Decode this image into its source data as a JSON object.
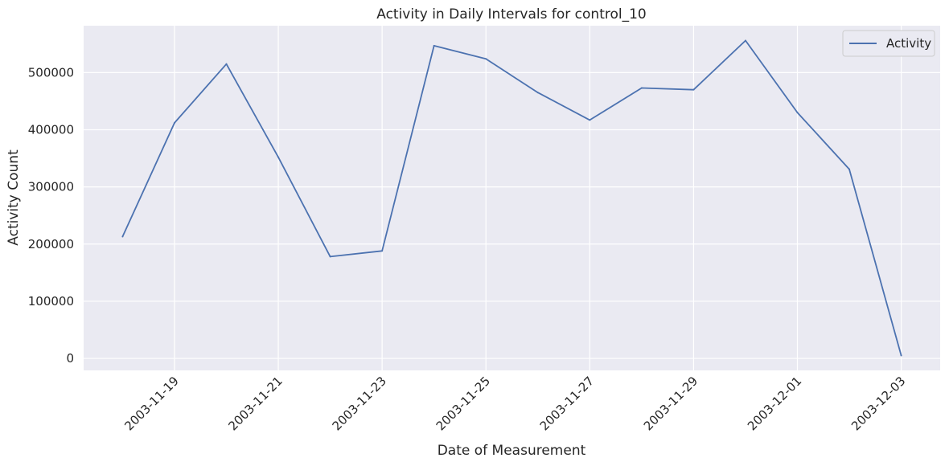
{
  "chart_data": {
    "type": "line",
    "title": "Activity in Daily Intervals for control_10",
    "xlabel": "Date of Measurement",
    "ylabel": "Activity Count",
    "x": [
      "2003-11-18",
      "2003-11-19",
      "2003-11-20",
      "2003-11-21",
      "2003-11-22",
      "2003-11-23",
      "2003-11-24",
      "2003-11-25",
      "2003-11-26",
      "2003-11-27",
      "2003-11-28",
      "2003-11-29",
      "2003-11-30",
      "2003-12-01",
      "2003-12-02",
      "2003-12-03"
    ],
    "series": [
      {
        "name": "Activity",
        "color": "#4c72b0",
        "values": [
          213000,
          412000,
          515000,
          352000,
          178000,
          188000,
          547000,
          524000,
          465000,
          417000,
          473000,
          470000,
          556000,
          430000,
          331000,
          5000
        ]
      }
    ],
    "xticks": [
      "2003-11-19",
      "2003-11-21",
      "2003-11-23",
      "2003-11-25",
      "2003-11-27",
      "2003-11-29",
      "2003-12-01",
      "2003-12-03"
    ],
    "yticks": [
      0,
      100000,
      200000,
      300000,
      400000,
      500000
    ],
    "ylim": [
      -21000,
      582000
    ],
    "grid": true,
    "legend_position": "top-right",
    "background_color": "#eaeaf2",
    "grid_color": "#ffffff"
  }
}
